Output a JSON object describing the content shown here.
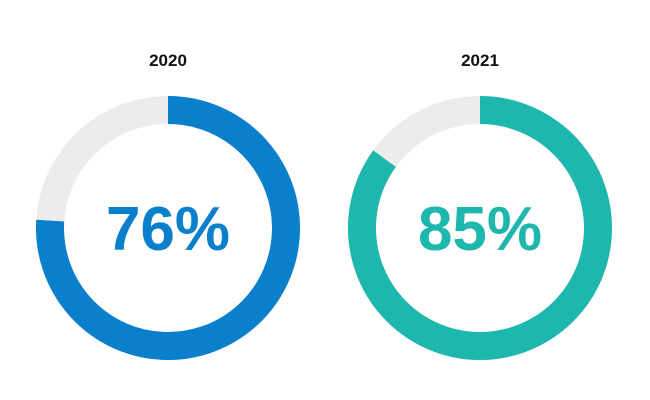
{
  "chart_data": {
    "type": "pie",
    "variant": "donut",
    "charts": [
      {
        "title": "2020",
        "value": 76,
        "value_label": "76%",
        "max": 100,
        "color": "#0A7FCB",
        "track_color": "#ECECEC"
      },
      {
        "title": "2021",
        "value": 85,
        "value_label": "85%",
        "max": 100,
        "color": "#1DB7AE",
        "track_color": "#ECECEC"
      }
    ],
    "legend": "none",
    "grid": false
  }
}
